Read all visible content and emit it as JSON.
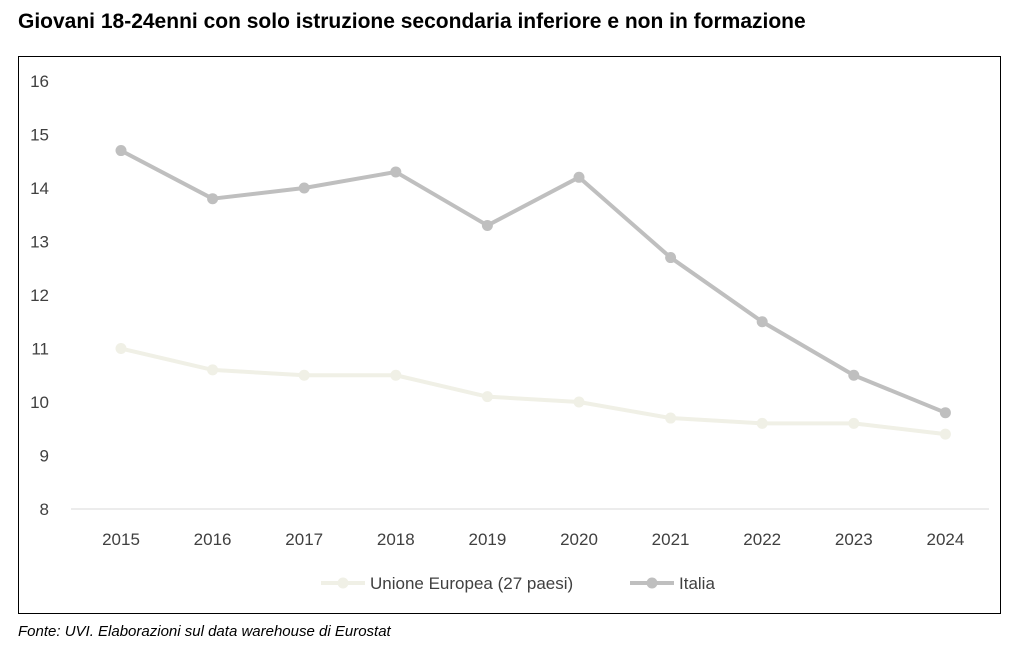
{
  "header": {
    "title": "Giovani 18-24enni con solo istruzione secondaria inferiore e non in formazione"
  },
  "footer": {
    "source": "Fonte: UVI. Elaborazioni sul data warehouse di Eurostat"
  },
  "chart_data": {
    "type": "line",
    "title": "Giovani 18-24enni con solo istruzione secondaria inferiore e non in formazione",
    "xlabel": "",
    "ylabel": "",
    "categories": [
      "2015",
      "2016",
      "2017",
      "2018",
      "2019",
      "2020",
      "2021",
      "2022",
      "2023",
      "2024"
    ],
    "ylim": [
      8,
      16
    ],
    "yticks": [
      8,
      9,
      10,
      11,
      12,
      13,
      14,
      15,
      16
    ],
    "grid": false,
    "legend": "bottom-center",
    "series": [
      {
        "name": "Unione Europea (27 paesi)",
        "color": "#f0f0e6",
        "values": [
          11.0,
          10.6,
          10.5,
          10.5,
          10.1,
          10.0,
          9.7,
          9.6,
          9.6,
          9.4
        ]
      },
      {
        "name": "Italia",
        "color": "#bfbfbf",
        "values": [
          14.7,
          13.8,
          14.0,
          14.3,
          13.3,
          14.2,
          12.7,
          11.5,
          10.5,
          9.8
        ]
      }
    ]
  }
}
